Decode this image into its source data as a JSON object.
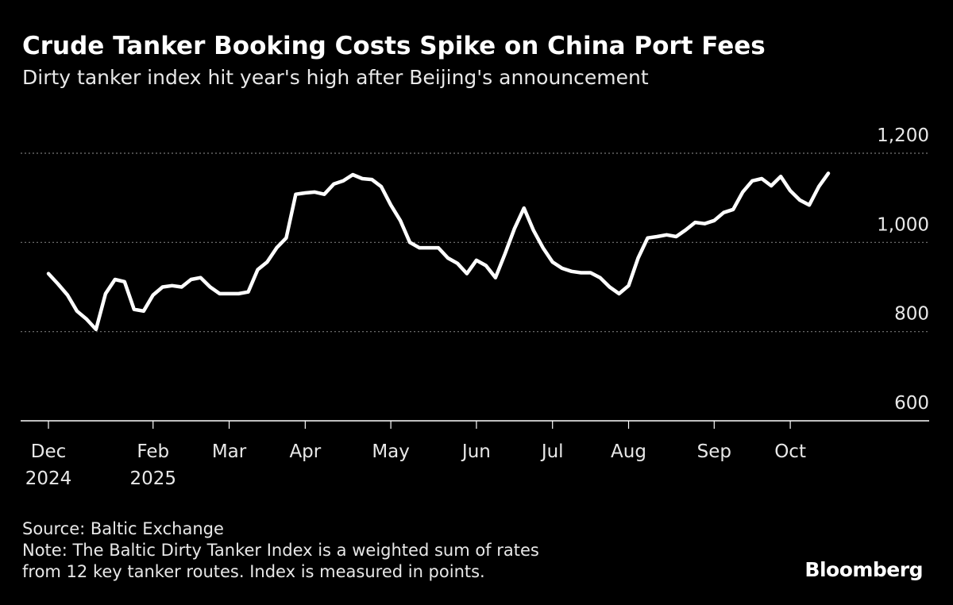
{
  "chart_data": {
    "type": "line",
    "title": "Crude Tanker Booking Costs Spike on China Port Fees",
    "subtitle": "Dirty tanker index hit year's high after Beijing's announcement",
    "categories": [
      "Dec",
      null,
      null,
      null,
      null,
      null,
      null,
      null,
      null,
      null,
      null,
      "Feb",
      null,
      null,
      null,
      null,
      null,
      null,
      null,
      "Mar",
      null,
      null,
      null,
      null,
      null,
      null,
      null,
      "Apr",
      null,
      null,
      null,
      null,
      null,
      null,
      null,
      null,
      "May",
      null,
      null,
      null,
      null,
      null,
      null,
      null,
      null,
      "Jun",
      null,
      null,
      null,
      null,
      null,
      null,
      null,
      "Jul",
      null,
      null,
      null,
      null,
      null,
      null,
      null,
      "Aug",
      null,
      null,
      null,
      null,
      null,
      null,
      null,
      null,
      "Sep",
      null,
      null,
      null,
      null,
      null,
      null,
      null,
      "Oct",
      null,
      null,
      null,
      null
    ],
    "category_years": [
      "2024",
      null,
      null,
      null,
      null,
      null,
      null,
      null,
      null,
      null,
      null,
      "2025",
      null,
      null,
      null,
      null,
      null,
      null,
      null,
      null,
      null,
      null,
      null,
      null,
      null,
      null,
      null,
      null,
      null,
      null,
      null,
      null,
      null,
      null,
      null,
      null,
      null,
      null,
      null,
      null,
      null,
      null,
      null,
      null,
      null,
      null,
      null,
      null,
      null,
      null,
      null,
      null,
      null,
      null,
      null,
      null,
      null,
      null,
      null,
      null,
      null,
      null,
      null,
      null,
      null,
      null,
      null,
      null,
      null,
      null,
      null,
      null,
      null,
      null,
      null,
      null,
      null,
      null,
      null,
      null,
      null,
      null,
      null
    ],
    "series": [
      {
        "name": "Baltic Dirty Tanker Index",
        "color": "#ffffff",
        "values": [
          930,
          907,
          882,
          846,
          828,
          805,
          885,
          917,
          912,
          850,
          846,
          882,
          900,
          903,
          900,
          917,
          921,
          900,
          885,
          885,
          885,
          889,
          939,
          956,
          988,
          1010,
          1108,
          1111,
          1113,
          1108,
          1131,
          1138,
          1152,
          1143,
          1141,
          1125,
          1084,
          1049,
          1000,
          988,
          988,
          988,
          965,
          953,
          930,
          960,
          948,
          921,
          974,
          1031,
          1077,
          1027,
          988,
          956,
          942,
          935,
          932,
          932,
          921,
          900,
          885,
          903,
          965,
          1010,
          1013,
          1017,
          1013,
          1028,
          1045,
          1042,
          1049,
          1067,
          1074,
          1113,
          1138,
          1143,
          1127,
          1148,
          1116,
          1095,
          1084,
          1125,
          1155
        ]
      }
    ],
    "ylim": [
      600,
      1200
    ],
    "yticks": [
      600,
      800,
      {
        "value": 1000,
        "label": "1,000"
      },
      {
        "value": 1200,
        "label": "1,200"
      }
    ],
    "grid": true,
    "source": "Source: Baltic Exchange",
    "note": "Note: The Baltic Dirty Tanker Index is a weighted sum of rates from 12 key tanker routes. Index is measured in points.",
    "brand": "Bloomberg"
  }
}
